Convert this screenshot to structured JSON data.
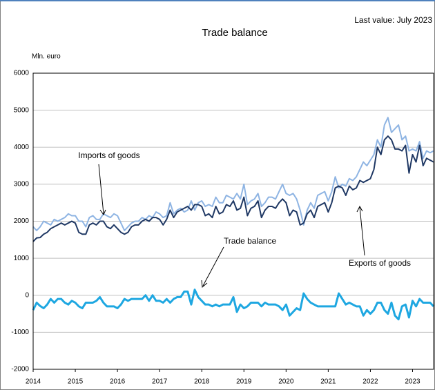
{
  "chart_data": {
    "type": "line",
    "title": "Trade balance",
    "subtitle": "Last value: July 2023",
    "y_label": "Mln. euro",
    "categories": [
      "2014",
      null,
      null,
      null,
      null,
      null,
      null,
      null,
      null,
      null,
      null,
      null,
      "2015",
      null,
      null,
      null,
      null,
      null,
      null,
      null,
      null,
      null,
      null,
      null,
      "2016",
      null,
      null,
      null,
      null,
      null,
      null,
      null,
      null,
      null,
      null,
      null,
      "2017",
      null,
      null,
      null,
      null,
      null,
      null,
      null,
      null,
      null,
      null,
      null,
      "2018",
      null,
      null,
      null,
      null,
      null,
      null,
      null,
      null,
      null,
      null,
      null,
      "2019",
      null,
      null,
      null,
      null,
      null,
      null,
      null,
      null,
      null,
      null,
      null,
      "2020",
      null,
      null,
      null,
      null,
      null,
      null,
      null,
      null,
      null,
      null,
      null,
      "2021",
      null,
      null,
      null,
      null,
      null,
      null,
      null,
      null,
      null,
      null,
      null,
      "2022",
      null,
      null,
      null,
      null,
      null,
      null,
      null,
      null,
      null,
      null,
      null,
      "2023",
      null,
      null,
      null,
      null,
      null,
      null
    ],
    "ylim": [
      -2000,
      6000
    ],
    "yticks": [
      -2000,
      -1000,
      0,
      1000,
      2000,
      3000,
      4000,
      5000,
      6000
    ],
    "grid": true,
    "series": [
      {
        "name": "Imports of goods",
        "color": "#8eb4e3",
        "width": 2,
        "values": [
          1850,
          1750,
          1850,
          2000,
          1950,
          1900,
          2050,
          2000,
          2050,
          2100,
          2200,
          2150,
          2150,
          2000,
          2000,
          1850,
          2100,
          2150,
          2050,
          2050,
          2200,
          2150,
          2100,
          2200,
          2150,
          1950,
          1750,
          1850,
          1950,
          2000,
          2000,
          2100,
          2050,
          2150,
          2100,
          2250,
          2200,
          2100,
          2150,
          2500,
          2200,
          2300,
          2350,
          2250,
          2300,
          2550,
          2300,
          2500,
          2550,
          2400,
          2450,
          2400,
          2650,
          2500,
          2500,
          2700,
          2650,
          2600,
          2750,
          2600,
          3000,
          2450,
          2550,
          2600,
          2750,
          2400,
          2500,
          2650,
          2650,
          2600,
          2800,
          3000,
          2750,
          2700,
          2750,
          2600,
          2300,
          1900,
          2300,
          2500,
          2350,
          2700,
          2750,
          2800,
          2550,
          2800,
          3200,
          2900,
          3000,
          2950,
          3150,
          3100,
          3200,
          3400,
          3600,
          3500,
          3650,
          3800,
          4200,
          4000,
          4600,
          4800,
          4400,
          4500,
          4600,
          4200,
          4300,
          3900,
          3950,
          3900,
          4150,
          3700,
          3900,
          3850,
          3900
        ]
      },
      {
        "name": "Exports of goods",
        "color": "#1f3864",
        "width": 2,
        "values": [
          1450,
          1550,
          1560,
          1650,
          1700,
          1800,
          1850,
          1900,
          1950,
          1900,
          1950,
          2000,
          1950,
          1700,
          1650,
          1650,
          1900,
          1950,
          1900,
          2000,
          2000,
          1850,
          1800,
          1900,
          1800,
          1700,
          1650,
          1700,
          1850,
          1900,
          1900,
          2000,
          2050,
          2000,
          2100,
          2100,
          2050,
          1900,
          2050,
          2300,
          2100,
          2250,
          2300,
          2350,
          2400,
          2300,
          2450,
          2450,
          2400,
          2150,
          2200,
          2100,
          2400,
          2200,
          2250,
          2450,
          2400,
          2550,
          2300,
          2350,
          2650,
          2150,
          2350,
          2400,
          2550,
          2100,
          2300,
          2400,
          2400,
          2350,
          2500,
          2600,
          2500,
          2150,
          2300,
          2250,
          1900,
          1950,
          2200,
          2300,
          2100,
          2400,
          2450,
          2500,
          2250,
          2500,
          2900,
          2950,
          2900,
          2700,
          2950,
          2850,
          2900,
          3100,
          3050,
          3100,
          3150,
          3400,
          4000,
          3800,
          4200,
          4300,
          4200,
          3950,
          3950,
          3900,
          4050,
          3300,
          3800,
          3600,
          4050,
          3500,
          3700,
          3650,
          3600
        ]
      },
      {
        "name": "Trade balance",
        "color": "#1ea7e1",
        "width": 3,
        "values": [
          -400,
          -200,
          -290,
          -350,
          -250,
          -100,
          -200,
          -100,
          -100,
          -200,
          -250,
          -150,
          -200,
          -300,
          -350,
          -200,
          -200,
          -200,
          -150,
          -50,
          -200,
          -300,
          -300,
          -300,
          -350,
          -250,
          -100,
          -150,
          -100,
          -100,
          -100,
          -100,
          0,
          -150,
          0,
          -150,
          -150,
          -200,
          -100,
          -200,
          -100,
          -50,
          -50,
          100,
          100,
          -250,
          150,
          -50,
          -150,
          -250,
          -250,
          -300,
          -250,
          -300,
          -250,
          -250,
          -250,
          -50,
          -450,
          -250,
          -350,
          -300,
          -200,
          -200,
          -200,
          -300,
          -200,
          -250,
          -250,
          -250,
          -300,
          -400,
          -250,
          -550,
          -450,
          -350,
          -400,
          50,
          -100,
          -200,
          -250,
          -300,
          -300,
          -300,
          -300,
          -300,
          -300,
          50,
          -100,
          -250,
          -200,
          -250,
          -300,
          -300,
          -550,
          -400,
          -500,
          -400,
          -200,
          -200,
          -400,
          -500,
          -200,
          -550,
          -650,
          -300,
          -250,
          -600,
          -150,
          -300,
          -100,
          -200,
          -200,
          -200,
          -300
        ]
      }
    ]
  }
}
